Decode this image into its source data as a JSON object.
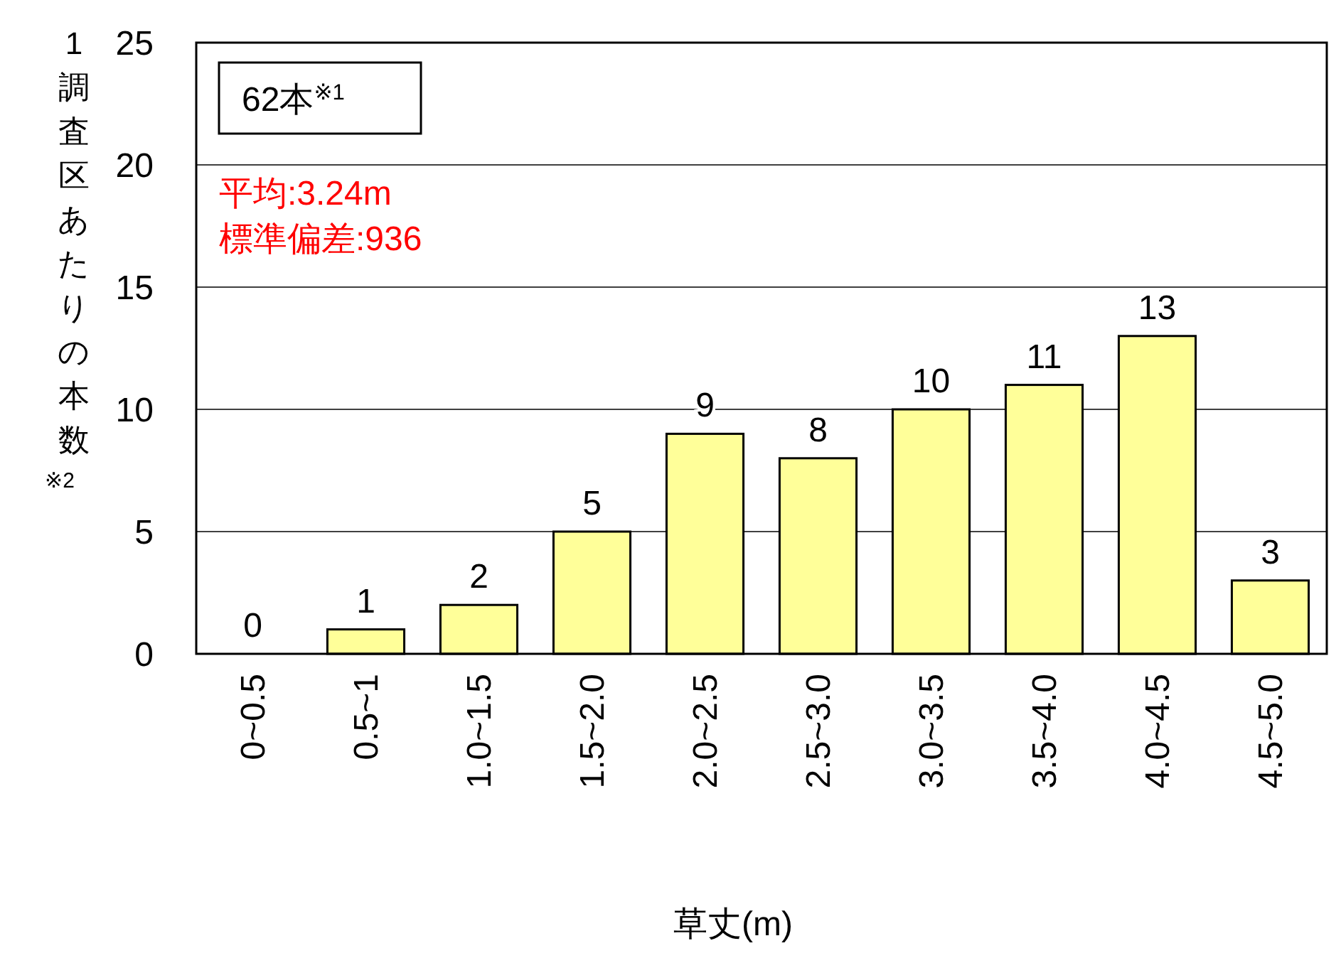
{
  "chart_data": {
    "type": "bar",
    "xlabel": "草丈(m)",
    "ylabel": "1調査区あたりの本数$^{※2}$",
    "categories": [
      "0~0.5",
      "0.5~1",
      "1.0~1.5",
      "1.5~2.0",
      "2.0~2.5",
      "2.5~3.0",
      "3.0~3.5",
      "3.5~4.0",
      "4.0~4.5",
      "4.5~5.0"
    ],
    "values": [
      0,
      1,
      2,
      5,
      9,
      8,
      10,
      11,
      13,
      3
    ],
    "color": "#ffff99",
    "ylim": [
      0,
      25
    ],
    "yticks": [
      0,
      5,
      10,
      15,
      20,
      25
    ],
    "grid": "y",
    "data_labels": true,
    "annotations": [
      "62本$^{※1}$",
      "平均:3.24m",
      "標準偏差:936"
    ]
  }
}
